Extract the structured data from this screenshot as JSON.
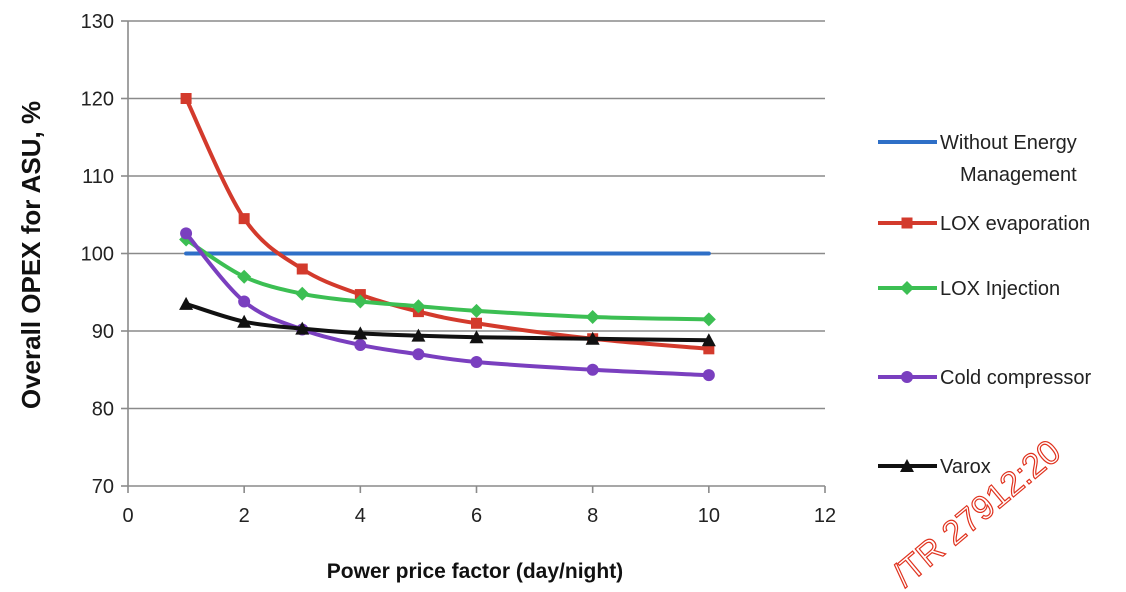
{
  "chart_data": {
    "type": "line",
    "title": "",
    "xlabel": "Power price factor (day/night)",
    "ylabel": "Overall OPEX  for ASU, %",
    "xlim": [
      0,
      12
    ],
    "ylim": [
      70,
      130
    ],
    "xticks": [
      0,
      2,
      4,
      6,
      8,
      10,
      12
    ],
    "yticks": [
      70,
      80,
      90,
      100,
      110,
      120,
      130
    ],
    "grid": "horizontal",
    "legend_position": "right",
    "series": [
      {
        "name": "Without Energy Management",
        "legend_lines": [
          "Without Energy",
          "Management"
        ],
        "color": "#2e6fc7",
        "marker": "none",
        "x": [
          1,
          10
        ],
        "y": [
          100,
          100
        ]
      },
      {
        "name": "LOX evaporation",
        "legend_lines": [
          "LOX evaporation"
        ],
        "color": "#d33a2c",
        "marker": "square",
        "x": [
          1,
          2,
          3,
          4,
          5,
          6,
          8,
          10
        ],
        "y": [
          120,
          104.5,
          98,
          94.7,
          92.5,
          91,
          89,
          87.7
        ]
      },
      {
        "name": "LOX Injection",
        "legend_lines": [
          "LOX Injection"
        ],
        "color": "#3cbf53",
        "marker": "diamond",
        "x": [
          1,
          2,
          3,
          4,
          5,
          6,
          8,
          10
        ],
        "y": [
          101.8,
          97,
          94.8,
          93.8,
          93.2,
          92.6,
          91.8,
          91.5
        ]
      },
      {
        "name": "Cold compressor",
        "legend_lines": [
          "Cold compressor"
        ],
        "color": "#7a3fbf",
        "marker": "circle",
        "x": [
          1,
          2,
          3,
          4,
          5,
          6,
          8,
          10
        ],
        "y": [
          102.6,
          93.8,
          90.2,
          88.2,
          87,
          86,
          85,
          84.3
        ]
      },
      {
        "name": "Varox",
        "legend_lines": [
          "Varox"
        ],
        "color": "#111111",
        "marker": "triangle",
        "x": [
          1,
          2,
          3,
          4,
          5,
          6,
          8,
          10
        ],
        "y": [
          93.5,
          91.2,
          90.3,
          89.7,
          89.4,
          89.2,
          89,
          88.8
        ]
      }
    ]
  },
  "watermark": "/TR 27912:20"
}
